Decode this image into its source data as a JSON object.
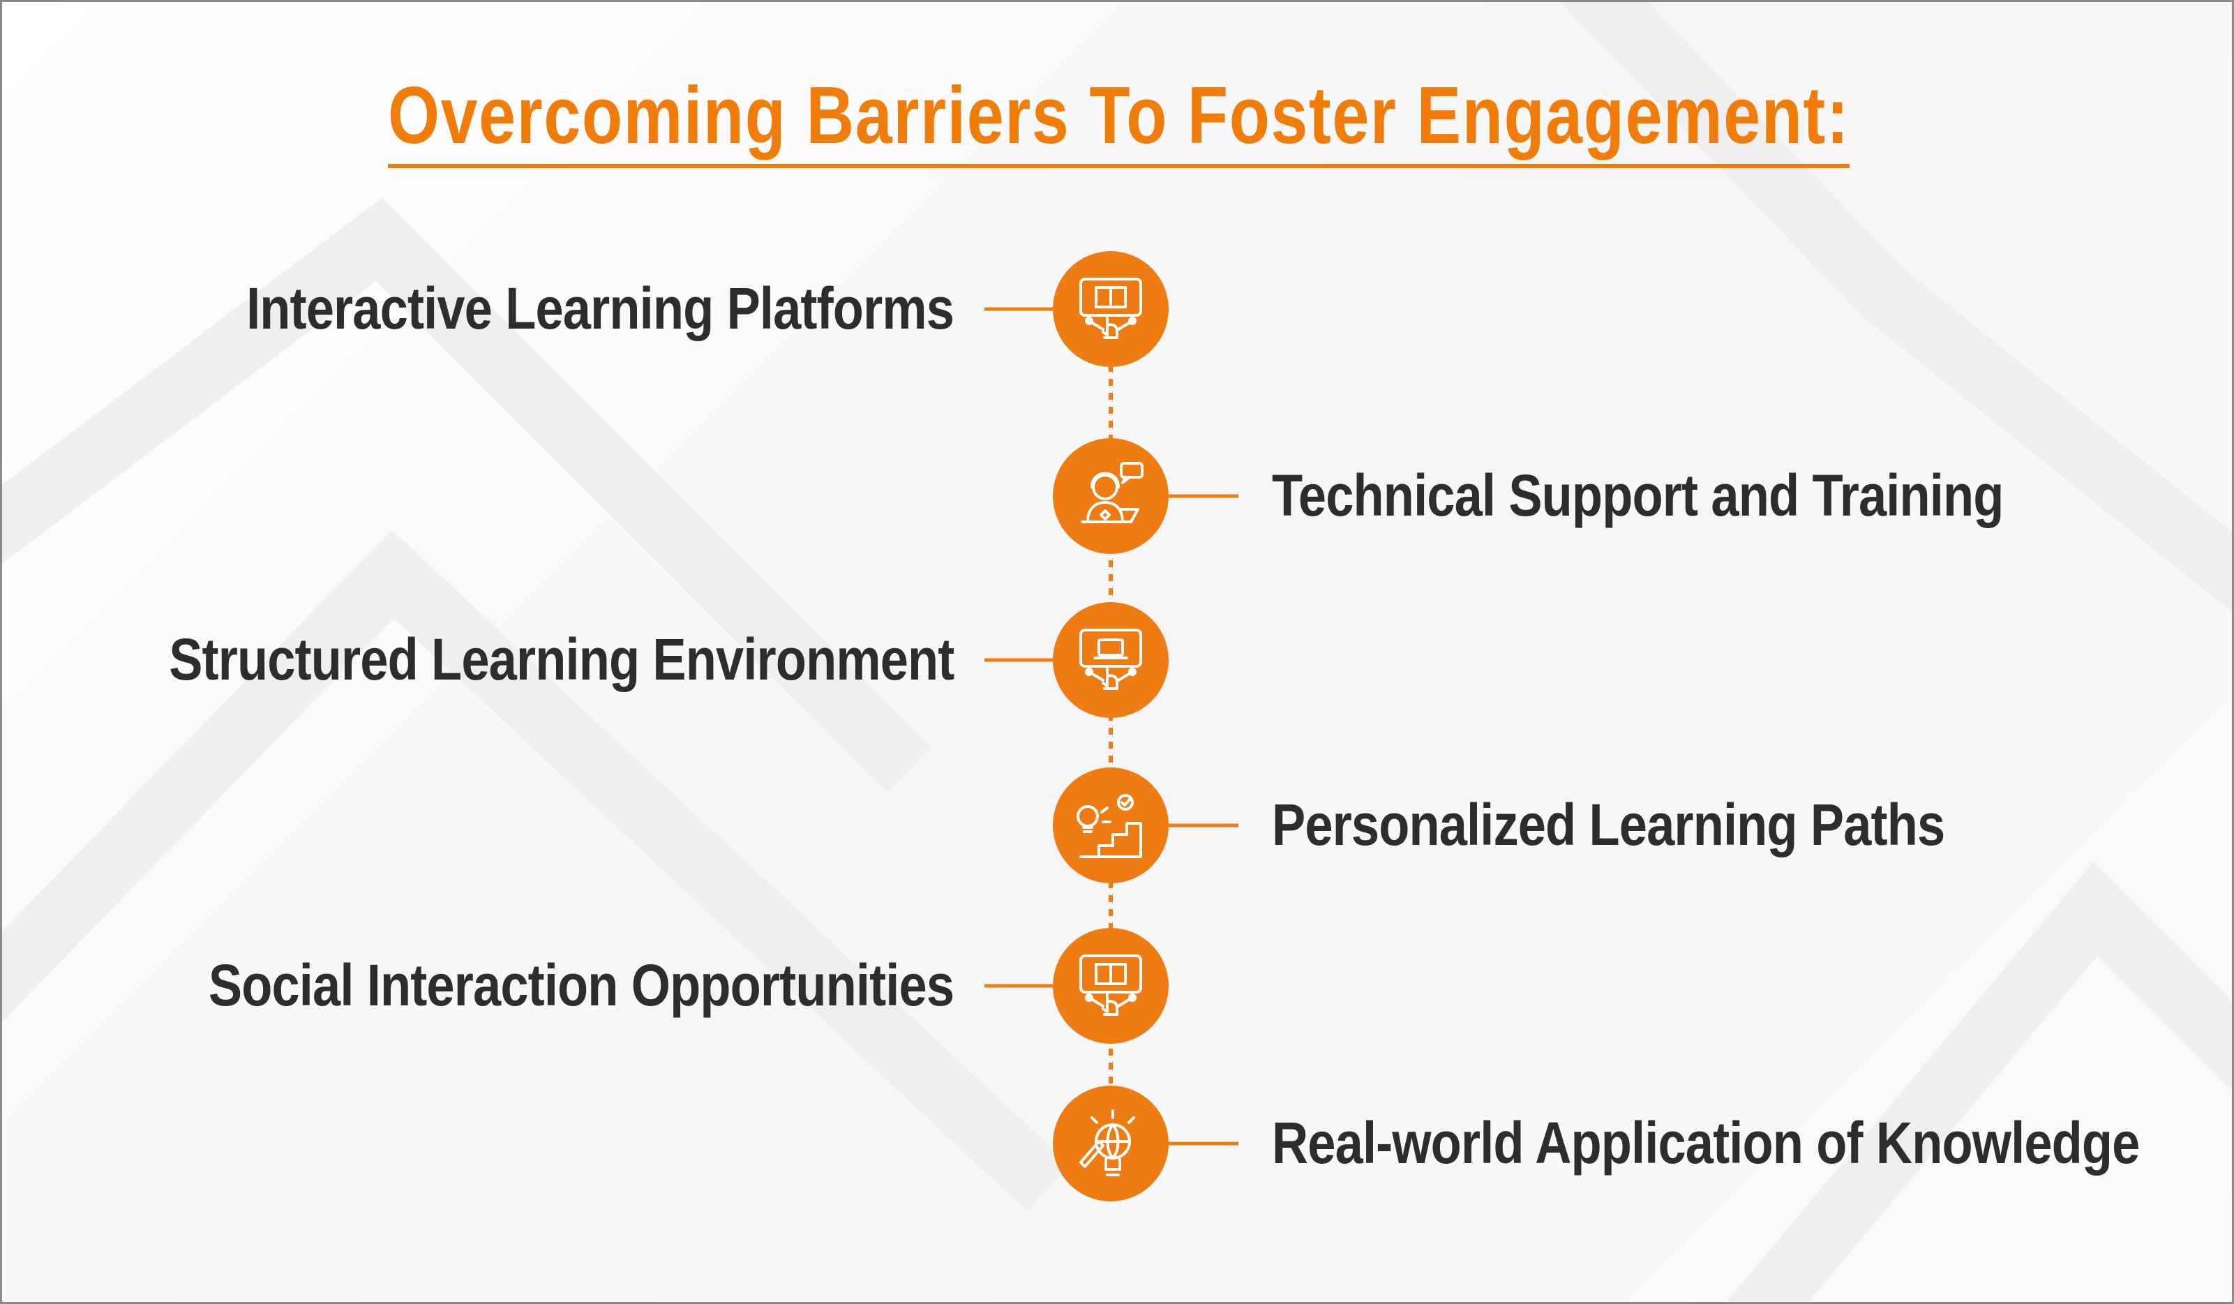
{
  "title": "Overcoming Barriers To Foster Engagement:",
  "colors": {
    "accent": "#ee7c12",
    "text": "#2d2d2d",
    "title": "#f07d0a"
  },
  "items": [
    {
      "label": "Interactive Learning Platforms",
      "side": "left",
      "icon": "touch-screen-icon"
    },
    {
      "label": "Technical Support and Training",
      "side": "right",
      "icon": "support-agent-icon"
    },
    {
      "label": "Structured Learning Environment",
      "side": "left",
      "icon": "laptop-screen-icon"
    },
    {
      "label": "Personalized Learning Paths",
      "side": "right",
      "icon": "idea-steps-icon"
    },
    {
      "label": "Social Interaction Opportunities",
      "side": "left",
      "icon": "touch-screen-icon"
    },
    {
      "label": "Real-world Application of Knowledge",
      "side": "right",
      "icon": "globe-bulb-icon"
    }
  ]
}
